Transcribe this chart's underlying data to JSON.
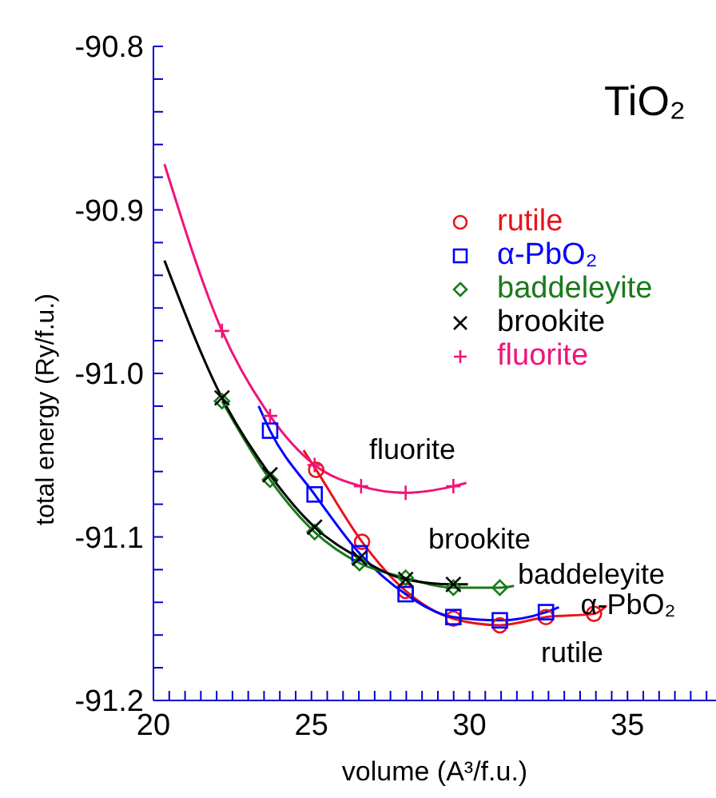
{
  "chart_data": {
    "type": "scatter",
    "title": "TiO₂",
    "xlabel": "volume  (A³/f.u.)",
    "ylabel": "total energy (Ry/f.u.)",
    "xlim": [
      20,
      37.8
    ],
    "ylim": [
      -91.2,
      -90.8
    ],
    "xticks": [
      20,
      {
        "value": 20.5,
        "label": null
      },
      {
        "value": 21,
        "label": null
      },
      {
        "value": 21.5,
        "label": null
      },
      {
        "value": 22,
        "label": null
      },
      {
        "value": 22.5,
        "label": null
      },
      {
        "value": 23,
        "label": null
      },
      {
        "value": 23.5,
        "label": null
      },
      {
        "value": 24,
        "label": null
      },
      {
        "value": 24.5,
        "label": null
      },
      25,
      {
        "value": 25.5,
        "label": null
      },
      {
        "value": 26,
        "label": null
      },
      {
        "value": 26.5,
        "label": null
      },
      {
        "value": 27,
        "label": null
      },
      {
        "value": 27.5,
        "label": null
      },
      {
        "value": 28,
        "label": null
      },
      {
        "value": 28.5,
        "label": null
      },
      {
        "value": 29,
        "label": null
      },
      {
        "value": 29.5,
        "label": null
      },
      30,
      {
        "value": 30.5,
        "label": null
      },
      {
        "value": 31,
        "label": null
      },
      {
        "value": 31.5,
        "label": null
      },
      {
        "value": 32,
        "label": null
      },
      {
        "value": 32.5,
        "label": null
      },
      {
        "value": 33,
        "label": null
      },
      {
        "value": 33.5,
        "label": null
      },
      {
        "value": 34,
        "label": null
      },
      {
        "value": 34.5,
        "label": null
      },
      35,
      {
        "value": 35.5,
        "label": null
      },
      {
        "value": 36,
        "label": null
      },
      {
        "value": 36.5,
        "label": null
      },
      {
        "value": 37,
        "label": null
      },
      {
        "value": 37.5,
        "label": null
      }
    ],
    "yticks": [
      {
        "value": -91.2,
        "label": "-91.2"
      },
      {
        "value": -91.18,
        "label": null
      },
      {
        "value": -91.16,
        "label": null
      },
      {
        "value": -91.14,
        "label": null
      },
      {
        "value": -91.12,
        "label": null
      },
      {
        "value": -91.1,
        "label": "-91.1"
      },
      {
        "value": -91.08,
        "label": null
      },
      {
        "value": -91.06,
        "label": null
      },
      {
        "value": -91.04,
        "label": null
      },
      {
        "value": -91.02,
        "label": null
      },
      {
        "value": -91.0,
        "label": "-91.0"
      },
      {
        "value": -90.98,
        "label": null
      },
      {
        "value": -90.96,
        "label": null
      },
      {
        "value": -90.94,
        "label": null
      },
      {
        "value": -90.92,
        "label": null
      },
      {
        "value": -90.9,
        "label": "-90.9"
      },
      {
        "value": -90.88,
        "label": null
      },
      {
        "value": -90.86,
        "label": null
      },
      {
        "value": -90.84,
        "label": null
      },
      {
        "value": -90.82,
        "label": null
      },
      {
        "value": -90.8,
        "label": "-90.8"
      }
    ],
    "legend": "top right",
    "grid": false,
    "series": [
      {
        "type": "line",
        "color": "#e8141c",
        "marker": "none",
        "x": [
          24.75,
          25.15,
          26.6,
          27.98,
          29.49,
          30.96,
          32.42,
          33.94,
          34.34
        ],
        "values": [
          -91.047,
          -91.059,
          -91.103,
          -91.133,
          -91.15,
          -91.154,
          -91.149,
          -91.147,
          -91.142
        ]
      },
      {
        "type": "line",
        "color": "#0000ff",
        "marker": "none",
        "x": [
          23.33,
          23.69,
          25.1,
          26.52,
          27.98,
          29.49,
          30.96,
          32.42,
          32.83
        ],
        "values": [
          -91.02,
          -91.035,
          -91.074,
          -91.11,
          -91.135,
          -91.149,
          -91.151,
          -91.146,
          -91.143
        ]
      },
      {
        "type": "line",
        "color": "#1a7a1a",
        "marker": "none",
        "x": [
          22.17,
          23.69,
          25.1,
          26.52,
          27.98,
          29.49,
          30.96,
          31.41
        ],
        "values": [
          -91.017,
          -91.065,
          -91.097,
          -91.116,
          -91.125,
          -91.131,
          -91.131,
          -91.13
        ]
      },
      {
        "type": "line",
        "color": "#000000",
        "marker": "none",
        "x": [
          20.35,
          22.17,
          23.69,
          25.1,
          26.52,
          27.98,
          29.49,
          29.95
        ],
        "values": [
          -90.931,
          -91.015,
          -91.062,
          -91.094,
          -91.113,
          -91.126,
          -91.129,
          -91.129
        ]
      },
      {
        "type": "line",
        "color": "#f0147a",
        "marker": "none",
        "x": [
          20.35,
          22.17,
          23.69,
          25.1,
          26.57,
          27.98,
          29.49,
          29.9
        ],
        "values": [
          -90.872,
          -90.974,
          -91.026,
          -91.056,
          -91.069,
          -91.073,
          -91.069,
          -91.067
        ]
      },
      {
        "name": "rutile",
        "color": "#e8141c",
        "marker": "circle",
        "x": [
          25.15,
          26.6,
          27.98,
          29.49,
          30.96,
          32.42,
          33.94
        ],
        "values": [
          -91.059,
          -91.103,
          -91.133,
          -91.15,
          -91.154,
          -91.149,
          -91.147
        ]
      },
      {
        "name": "α-PbO₂",
        "color": "#0000ff",
        "marker": "square",
        "x": [
          23.69,
          25.1,
          26.52,
          27.98,
          29.49,
          30.96,
          32.42
        ],
        "values": [
          -91.035,
          -91.074,
          -91.11,
          -91.135,
          -91.149,
          -91.151,
          -91.146
        ]
      },
      {
        "name": "baddeleyite",
        "color": "#1a7a1a",
        "marker": "diamond",
        "x": [
          22.17,
          23.69,
          25.1,
          26.52,
          27.98,
          29.49,
          30.96
        ],
        "values": [
          -91.017,
          -91.065,
          -91.097,
          -91.116,
          -91.125,
          -91.131,
          -91.131
        ]
      },
      {
        "name": "brookite",
        "color": "#000000",
        "marker": "cross",
        "x": [
          22.17,
          23.69,
          25.1,
          26.52,
          27.98,
          29.49
        ],
        "values": [
          -91.015,
          -91.062,
          -91.094,
          -91.113,
          -91.126,
          -91.129
        ]
      },
      {
        "name": "fluorite",
        "color": "#f0147a",
        "marker": "plus",
        "x": [
          22.17,
          23.69,
          25.1,
          26.57,
          27.98,
          29.49
        ],
        "values": [
          -90.974,
          -91.026,
          -91.056,
          -91.069,
          -91.073,
          -91.069
        ]
      }
    ],
    "annotations": [
      "fluorite",
      "brookite",
      "baddeleyite",
      "α-PbO₂",
      "rutile"
    ]
  }
}
